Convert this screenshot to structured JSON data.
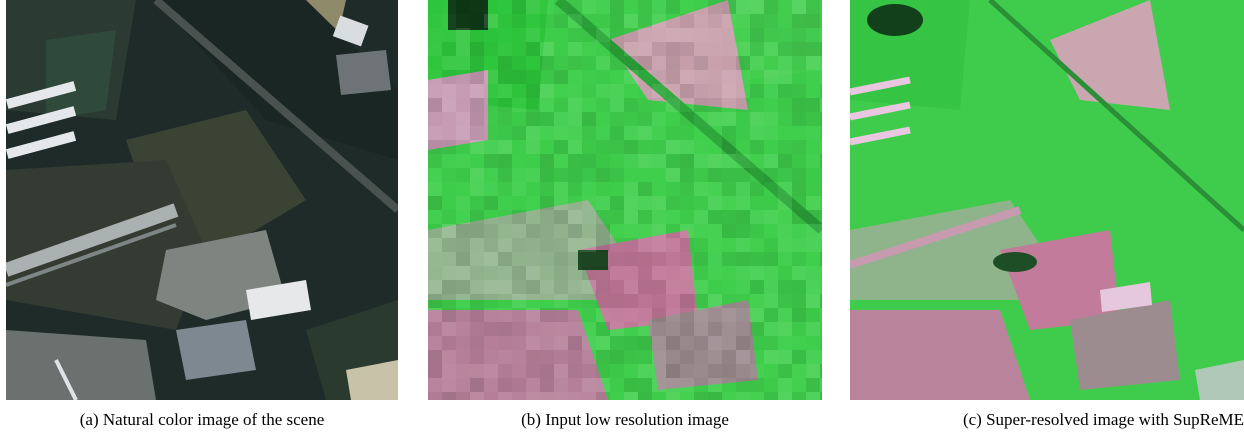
{
  "figure": {
    "panels": [
      {
        "caption": "(a) Natural color image of the scene"
      },
      {
        "caption": "(b) Input low resolution image"
      },
      {
        "caption": "(c) Super-resolved image with SupReME"
      }
    ]
  }
}
